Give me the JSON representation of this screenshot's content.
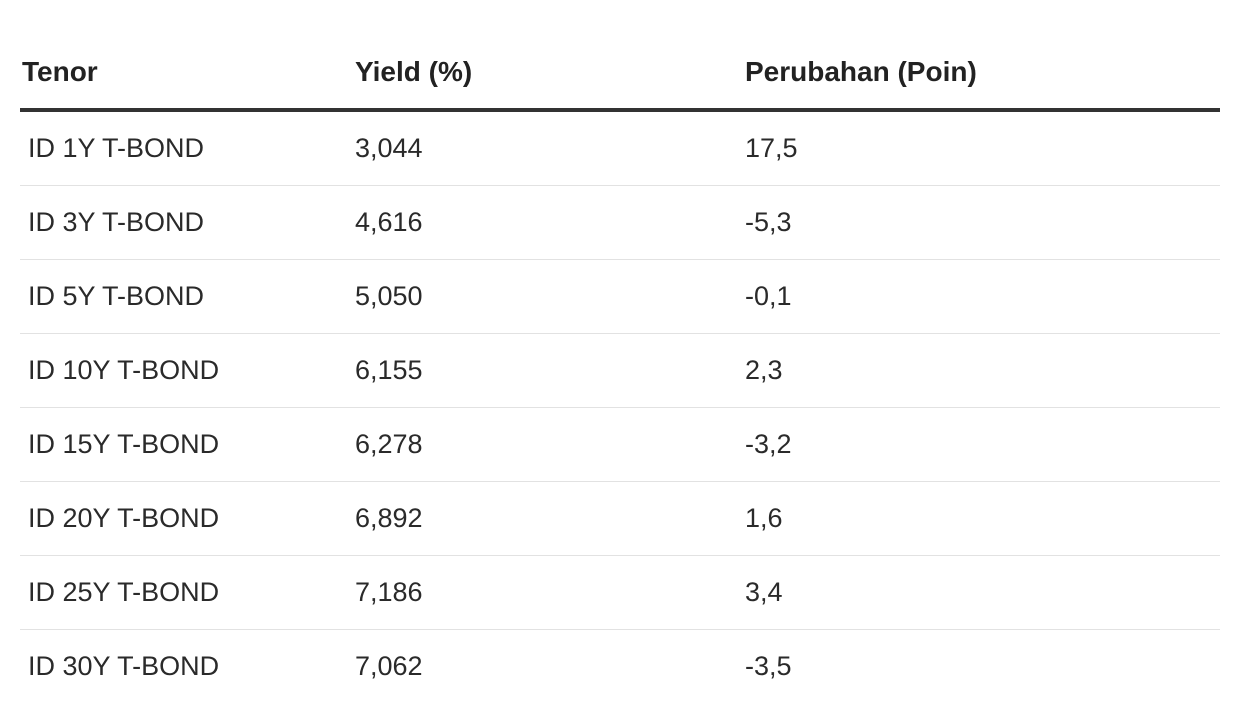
{
  "table": {
    "headers": {
      "tenor": "Tenor",
      "yield": "Yield (%)",
      "change": "Perubahan (Poin)"
    },
    "rows": [
      {
        "tenor": "ID 1Y T-BOND",
        "yield": "3,044",
        "change": "17,5"
      },
      {
        "tenor": "ID 3Y T-BOND",
        "yield": "4,616",
        "change": "-5,3"
      },
      {
        "tenor": "ID 5Y T-BOND",
        "yield": "5,050",
        "change": "-0,1"
      },
      {
        "tenor": "ID 10Y T-BOND",
        "yield": "6,155",
        "change": "2,3"
      },
      {
        "tenor": "ID 15Y T-BOND",
        "yield": "6,278",
        "change": "-3,2"
      },
      {
        "tenor": "ID 20Y T-BOND",
        "yield": "6,892",
        "change": "1,6"
      },
      {
        "tenor": "ID 25Y T-BOND",
        "yield": "7,186",
        "change": "3,4"
      },
      {
        "tenor": "ID 30Y T-BOND",
        "yield": "7,062",
        "change": "-3,5"
      }
    ]
  }
}
